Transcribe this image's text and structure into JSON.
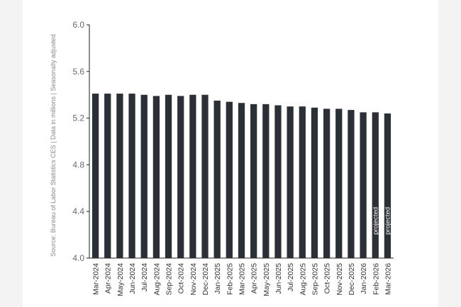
{
  "chart_data": {
    "type": "bar",
    "side_note": "Source: Bureau of Labor Statistics CES | Data in millions | Seasonally adjusted",
    "ylim": [
      4.0,
      6.0
    ],
    "yticks": [
      "4.0",
      "4.4",
      "4.8",
      "5.2",
      "5.6",
      "6.0"
    ],
    "grid": false,
    "bar_color": "#2b2f36",
    "categories": [
      "Mar-2024",
      "Apr-2024",
      "May-2024",
      "Jun-2024",
      "Jul-2024",
      "Aug-2024",
      "Sep-2024",
      "Oct-2024",
      "Nov-2024",
      "Dec-2024",
      "Jan-2025",
      "Feb-2025",
      "Mar-2025",
      "Apr-2025",
      "May-2025",
      "Jun-2025",
      "Jul-2025",
      "Aug-2025",
      "Sep-2025",
      "Oct-2025",
      "Nov-2025",
      "Dec-2025",
      "Jan-2026",
      "Feb-2026",
      "Mar-2026"
    ],
    "values": [
      5.41,
      5.41,
      5.41,
      5.41,
      5.4,
      5.39,
      5.4,
      5.39,
      5.4,
      5.4,
      5.35,
      5.34,
      5.33,
      5.32,
      5.32,
      5.31,
      5.3,
      5.3,
      5.29,
      5.28,
      5.28,
      5.27,
      5.25,
      5.25,
      5.24
    ],
    "annotations": [
      {
        "category": "Feb-2026",
        "text": "projected"
      },
      {
        "category": "Mar-2026",
        "text": "projected"
      }
    ]
  }
}
